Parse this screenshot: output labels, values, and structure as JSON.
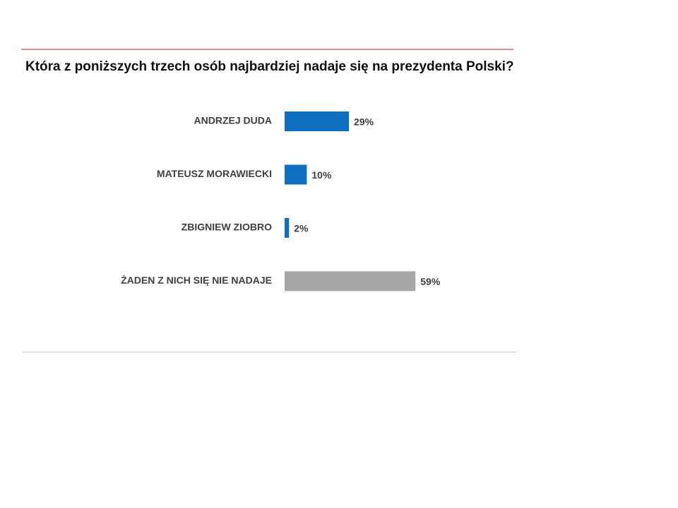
{
  "chart_data": {
    "type": "bar",
    "orientation": "horizontal",
    "title": "Która z poniższych trzech osób najbardziej nadaje się na prezydenta Polski?",
    "categories": [
      "ANDRZEJ DUDA",
      "MATEUSZ MORAWIECKI",
      "ZBIGNIEW ZIOBRO",
      "ŻADEN Z NICH SIĘ NIE NADAJE"
    ],
    "values": [
      29,
      10,
      2,
      59
    ],
    "value_labels": [
      "29%",
      "10%",
      "2%",
      "59%"
    ],
    "colors": [
      "#0e6fc1",
      "#0e6fc1",
      "#0e6fc1",
      "#a6a6a6"
    ]
  }
}
